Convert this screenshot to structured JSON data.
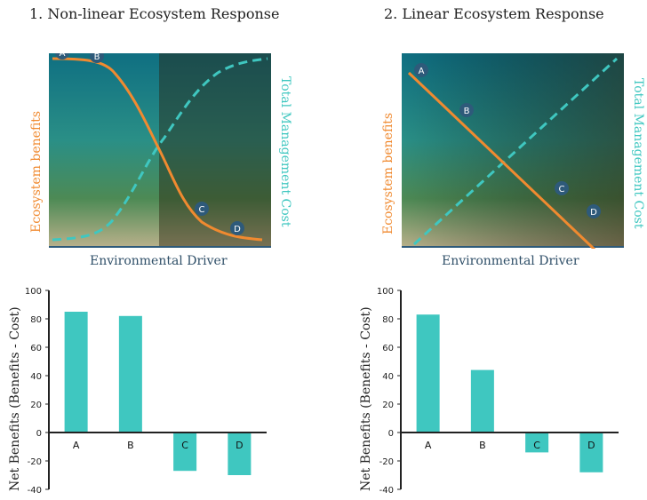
{
  "chart_data": [
    {
      "type": "line",
      "title": "1. Non-linear Ecosystem Response",
      "xlabel": "Environmental Driver",
      "ylabel_left": "Ecosystem benefits",
      "ylabel_right": "Total Management Cost",
      "points": [
        "A",
        "B",
        "C",
        "D"
      ],
      "colors": {
        "benefits": "#f08a30",
        "cost": "#3fc7c0",
        "marker": "#2e5a7a"
      }
    },
    {
      "type": "line",
      "title": "2. Linear Ecosystem Response",
      "xlabel": "Environmental Driver",
      "ylabel_left": "Ecosystem benefits",
      "ylabel_right": "Total Management Cost",
      "points": [
        "A",
        "B",
        "C",
        "D"
      ],
      "colors": {
        "benefits": "#f08a30",
        "cost": "#3fc7c0",
        "marker": "#2e5a7a"
      }
    },
    {
      "type": "bar",
      "categories": [
        "A",
        "B",
        "C",
        "D"
      ],
      "values": [
        85,
        82,
        -27,
        -30
      ],
      "ylabel": "Net Benefits (Benefits - Cost)",
      "ylim": [
        -40,
        100
      ],
      "yticks": [
        "100",
        "80",
        "60",
        "40",
        "20",
        "0",
        "-20",
        "-40"
      ],
      "color": "#3fc7c0"
    },
    {
      "type": "bar",
      "categories": [
        "A",
        "B",
        "C",
        "D"
      ],
      "values": [
        83,
        44,
        -14,
        -28
      ],
      "ylabel": "Net Benefits (Benefits - Cost)",
      "ylim": [
        -40,
        100
      ],
      "yticks": [
        "100",
        "80",
        "60",
        "40",
        "20",
        "0",
        "-20",
        "-40"
      ],
      "color": "#3fc7c0"
    }
  ]
}
